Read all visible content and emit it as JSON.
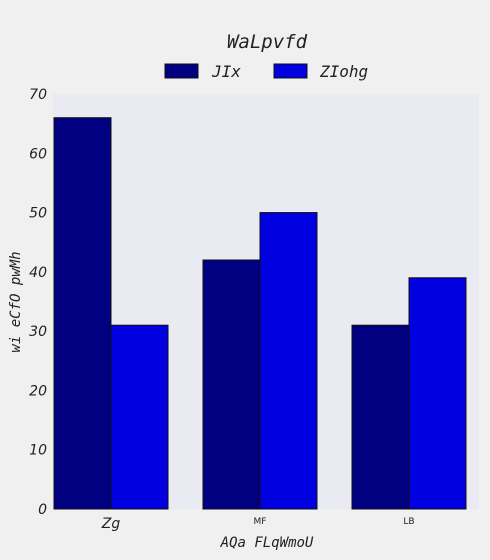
{
  "chart_data": {
    "type": "bar",
    "title": "WaLpvfd",
    "xlabel": "AQa FLqWmoU",
    "ylabel": "wi eCfO pwMh",
    "categories": [
      "Zg",
      "MF",
      "LB"
    ],
    "series": [
      {
        "name": "JIx",
        "values": [
          66,
          42,
          31
        ]
      },
      {
        "name": "ZIohg",
        "values": [
          31,
          50,
          39
        ]
      }
    ],
    "ylim": [
      0,
      70
    ],
    "yticks": [
      0,
      10,
      20,
      30,
      40,
      50,
      60,
      70
    ],
    "grid": false,
    "legend_position": "top-center",
    "colors": {
      "series": [
        "#000080",
        "#0000e0"
      ],
      "plot_background": "#eaeaf2",
      "page_background": "#f0f0f0",
      "bar_edge": "#111111"
    }
  }
}
